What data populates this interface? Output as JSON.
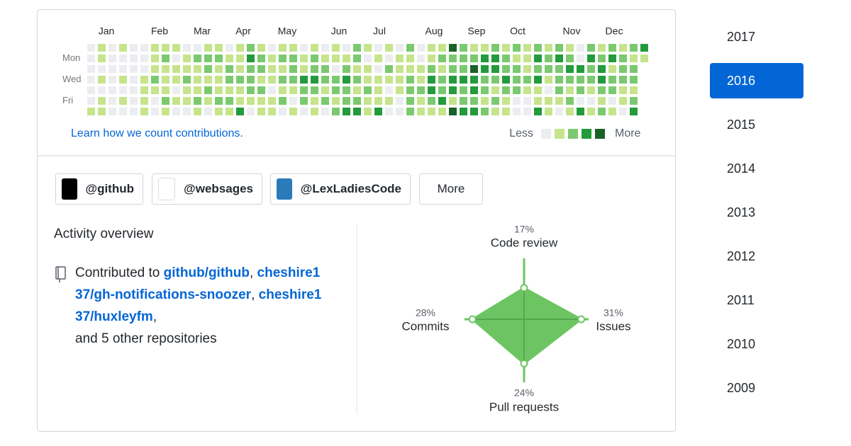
{
  "calendar": {
    "months": [
      "Jan",
      "Feb",
      "Mar",
      "Apr",
      "May",
      "Jun",
      "Jul",
      "Aug",
      "Sep",
      "Oct",
      "Nov",
      "Dec"
    ],
    "days": [
      "Mon",
      "Wed",
      "Fri"
    ],
    "level_colors": [
      "#ebedf0",
      "#c6e48b",
      "#7bc96f",
      "#239a3b",
      "#196127"
    ],
    "weeks": [
      [
        0,
        0,
        0,
        0,
        0,
        0,
        1
      ],
      [
        1,
        1,
        0,
        1,
        0,
        1,
        1
      ],
      [
        0,
        0,
        0,
        0,
        0,
        0,
        0
      ],
      [
        1,
        0,
        0,
        1,
        0,
        1,
        0
      ],
      [
        0,
        0,
        0,
        0,
        0,
        0,
        0
      ],
      [
        0,
        0,
        0,
        1,
        1,
        1,
        1
      ],
      [
        1,
        1,
        1,
        2,
        1,
        0,
        0
      ],
      [
        1,
        2,
        1,
        1,
        1,
        2,
        1
      ],
      [
        1,
        0,
        1,
        1,
        0,
        1,
        0
      ],
      [
        0,
        1,
        1,
        2,
        1,
        1,
        0
      ],
      [
        0,
        2,
        1,
        1,
        1,
        2,
        1
      ],
      [
        1,
        2,
        2,
        1,
        2,
        1,
        0
      ],
      [
        1,
        2,
        1,
        1,
        1,
        2,
        1
      ],
      [
        0,
        1,
        2,
        2,
        1,
        2,
        1
      ],
      [
        1,
        1,
        1,
        2,
        1,
        1,
        3
      ],
      [
        2,
        3,
        2,
        2,
        2,
        1,
        0
      ],
      [
        1,
        2,
        2,
        1,
        2,
        1,
        1
      ],
      [
        0,
        1,
        1,
        1,
        0,
        1,
        1
      ],
      [
        1,
        2,
        1,
        2,
        1,
        2,
        0
      ],
      [
        1,
        2,
        2,
        2,
        1,
        0,
        1
      ],
      [
        0,
        1,
        1,
        3,
        2,
        2,
        0
      ],
      [
        1,
        2,
        2,
        3,
        2,
        1,
        1
      ],
      [
        0,
        1,
        2,
        2,
        1,
        2,
        0
      ],
      [
        1,
        1,
        0,
        2,
        2,
        1,
        2
      ],
      [
        0,
        1,
        2,
        3,
        2,
        2,
        3
      ],
      [
        2,
        2,
        1,
        2,
        1,
        2,
        3
      ],
      [
        1,
        0,
        1,
        1,
        2,
        1,
        1
      ],
      [
        0,
        1,
        0,
        1,
        1,
        1,
        3
      ],
      [
        1,
        0,
        2,
        1,
        0,
        1,
        0
      ],
      [
        0,
        1,
        1,
        1,
        1,
        0,
        0
      ],
      [
        2,
        1,
        1,
        2,
        2,
        2,
        2
      ],
      [
        0,
        0,
        1,
        1,
        2,
        1,
        1
      ],
      [
        1,
        1,
        2,
        3,
        3,
        2,
        1
      ],
      [
        1,
        2,
        1,
        2,
        2,
        3,
        1
      ],
      [
        4,
        2,
        2,
        3,
        3,
        1,
        4
      ],
      [
        2,
        2,
        2,
        3,
        2,
        2,
        3
      ],
      [
        1,
        2,
        4,
        3,
        3,
        2,
        3
      ],
      [
        1,
        3,
        3,
        2,
        2,
        1,
        2
      ],
      [
        2,
        3,
        3,
        2,
        1,
        2,
        1
      ],
      [
        1,
        2,
        2,
        3,
        2,
        1,
        1
      ],
      [
        2,
        1,
        2,
        2,
        2,
        0,
        0
      ],
      [
        1,
        1,
        1,
        2,
        1,
        0,
        0
      ],
      [
        2,
        3,
        2,
        3,
        1,
        1,
        3
      ],
      [
        1,
        2,
        2,
        1,
        0,
        1,
        1
      ],
      [
        2,
        3,
        2,
        2,
        2,
        1,
        0
      ],
      [
        1,
        2,
        3,
        2,
        1,
        2,
        1
      ],
      [
        0,
        0,
        3,
        2,
        2,
        0,
        3
      ],
      [
        2,
        3,
        2,
        2,
        1,
        0,
        1
      ],
      [
        1,
        2,
        3,
        3,
        2,
        1,
        2
      ],
      [
        2,
        3,
        1,
        2,
        2,
        0,
        1
      ],
      [
        1,
        2,
        2,
        2,
        1,
        1,
        0
      ],
      [
        2,
        1,
        2,
        2,
        1,
        2,
        3
      ],
      [
        3,
        1
      ]
    ],
    "learn_link": "Learn how we count contributions.",
    "legend_less": "Less",
    "legend_more": "More"
  },
  "organizations": [
    "@github",
    "@websages",
    "@LexLadiesCode"
  ],
  "more_button": "More",
  "activity": {
    "title": "Activity overview",
    "prefix": "Contributed to",
    "repos": [
      "github/github",
      "cheshire137/gh-notifications-snoozer",
      "cheshire137/huxleyfm"
    ],
    "separator": ",",
    "suffix": "and 5 other repositories",
    "color": "#6cc562",
    "axes": [
      {
        "name": "Code review",
        "value": 17,
        "label": "17%"
      },
      {
        "name": "Issues",
        "value": 31,
        "label": "31%"
      },
      {
        "name": "Pull requests",
        "value": 24,
        "label": "24%"
      },
      {
        "name": "Commits",
        "value": 28,
        "label": "28%"
      }
    ]
  },
  "years": [
    "2017",
    "2016",
    "2015",
    "2014",
    "2013",
    "2012",
    "2011",
    "2010",
    "2009"
  ],
  "selected_year_index": 1
}
